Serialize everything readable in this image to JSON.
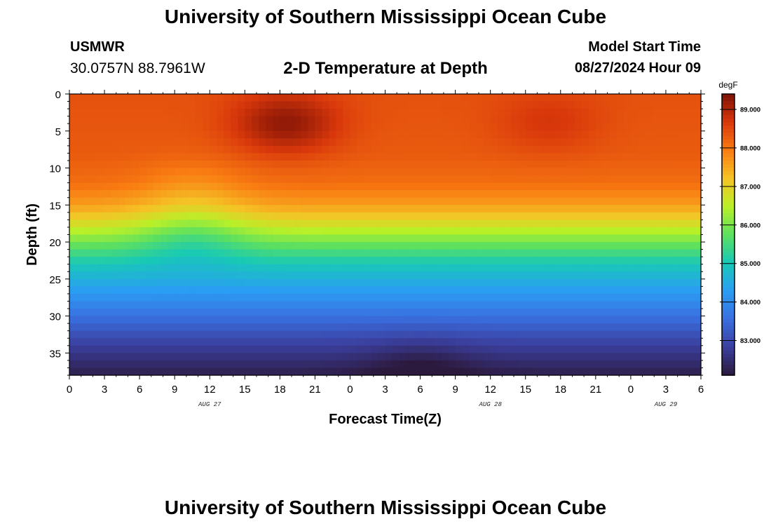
{
  "header": {
    "title": "University of Southern Mississippi Ocean Cube",
    "station": "USMWR",
    "coords": "30.0757N  88.7961W",
    "subtitle": "2-D Temperature at Depth",
    "model_label": "Model Start Time",
    "model_time": "08/27/2024 Hour 09"
  },
  "footer": {
    "title": "University of Southern Mississippi Ocean Cube"
  },
  "chart_data": {
    "type": "heatmap",
    "title": "2-D Temperature at Depth",
    "xlabel": "Forecast Time(Z)",
    "ylabel": "Depth (ft)",
    "x_ticks": [
      {
        "hours": 0,
        "label": "0"
      },
      {
        "hours": 3,
        "label": "3"
      },
      {
        "hours": 6,
        "label": "6"
      },
      {
        "hours": 9,
        "label": "9"
      },
      {
        "hours": 12,
        "label": "12"
      },
      {
        "hours": 15,
        "label": "15"
      },
      {
        "hours": 18,
        "label": "18"
      },
      {
        "hours": 21,
        "label": "21"
      },
      {
        "hours": 24,
        "label": "0"
      },
      {
        "hours": 27,
        "label": "3"
      },
      {
        "hours": 30,
        "label": "6"
      },
      {
        "hours": 33,
        "label": "9"
      },
      {
        "hours": 36,
        "label": "12"
      },
      {
        "hours": 39,
        "label": "15"
      },
      {
        "hours": 42,
        "label": "18"
      },
      {
        "hours": 45,
        "label": "21"
      },
      {
        "hours": 48,
        "label": "0"
      },
      {
        "hours": 51,
        "label": "3"
      },
      {
        "hours": 54,
        "label": "6"
      }
    ],
    "date_labels": [
      {
        "hours": 12,
        "label": "AUG 27"
      },
      {
        "hours": 36,
        "label": "AUG 28"
      },
      {
        "hours": 51,
        "label": "AUG 29"
      }
    ],
    "xlim": [
      0,
      54
    ],
    "y_ticks": [
      0,
      5,
      10,
      15,
      20,
      25,
      30,
      35
    ],
    "ylim": [
      0,
      38
    ],
    "colorbar": {
      "unit": "degF",
      "ticks": [
        "83.000",
        "84.000",
        "85.000",
        "86.000",
        "87.000",
        "88.000",
        "89.000"
      ],
      "range": [
        82.1,
        89.4
      ],
      "colors": [
        "#2c1a3e",
        "#3b3f9e",
        "#3a6fe0",
        "#2a9ef3",
        "#18c9b6",
        "#5de05f",
        "#b9f028",
        "#f5c326",
        "#f97c12",
        "#d9380b",
        "#7e1206"
      ]
    },
    "profile_depth": [
      0,
      8,
      12,
      15,
      17,
      19,
      21,
      23,
      25,
      27,
      30,
      33,
      36,
      38
    ],
    "profile_temp": [
      88.4,
      88.3,
      88.1,
      87.6,
      87.0,
      86.3,
      85.6,
      85.0,
      84.6,
      84.2,
      83.6,
      83.0,
      82.5,
      82.2
    ],
    "features": [
      {
        "hours": 18.5,
        "depth": 4,
        "delta_temp": 0.9
      },
      {
        "hours": 41,
        "depth": 4,
        "delta_temp": 0.35
      },
      {
        "hours": 30,
        "depth": 37,
        "delta_temp": -0.35
      },
      {
        "hours": 10.5,
        "depth": 19,
        "delta_temp": -0.6
      },
      {
        "hours": 10.5,
        "depth": 13,
        "delta_temp": -0.35
      }
    ]
  }
}
